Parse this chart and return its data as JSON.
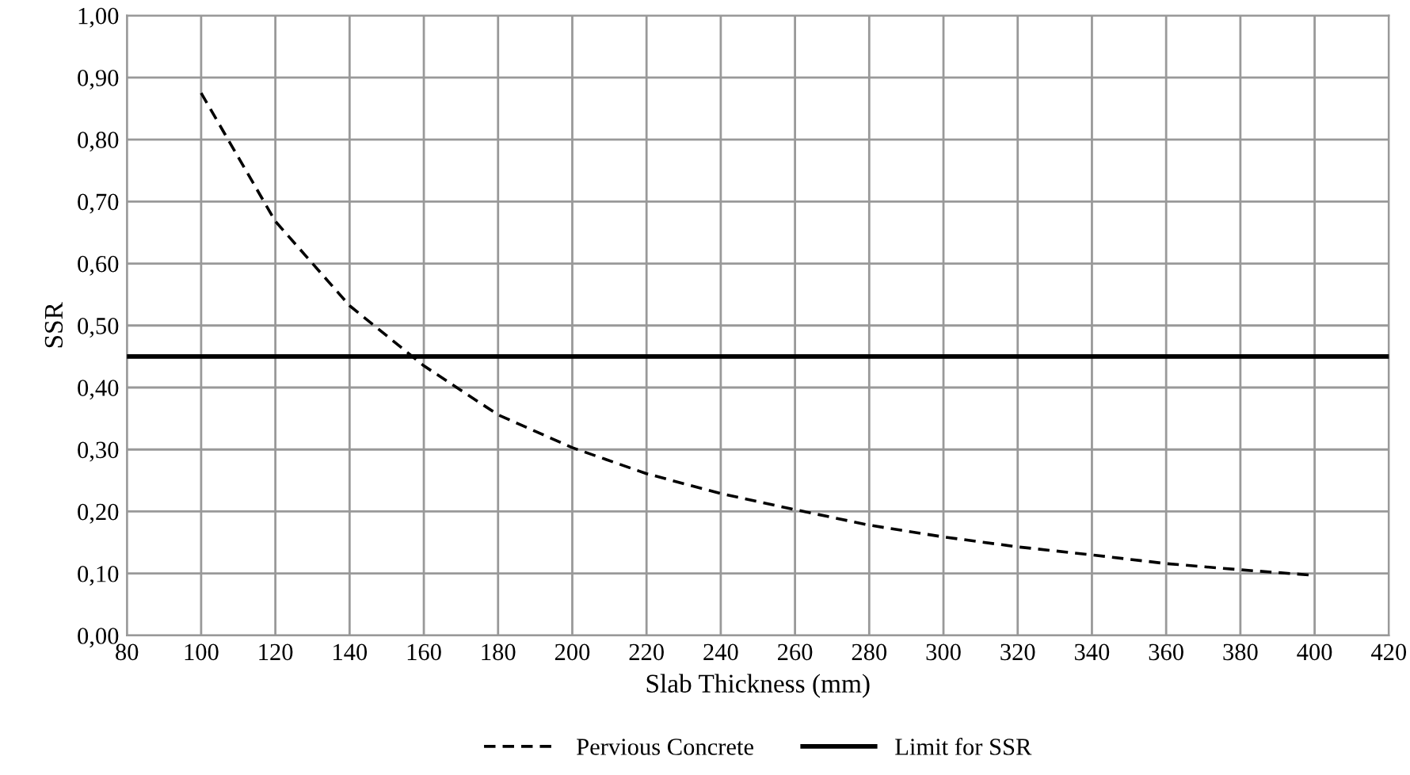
{
  "chart_data": {
    "type": "line",
    "xlabel": "Slab Thickness (mm)",
    "ylabel": "SSR",
    "xlim": [
      80,
      420
    ],
    "xticks": [
      80,
      100,
      120,
      140,
      160,
      180,
      200,
      220,
      240,
      260,
      280,
      300,
      320,
      340,
      360,
      380,
      400,
      420
    ],
    "ylim": [
      0,
      1
    ],
    "yticks": [
      {
        "value": 0,
        "label": "0,00"
      },
      {
        "value": 0.1,
        "label": "0,10"
      },
      {
        "value": 0.2,
        "label": "0,20"
      },
      {
        "value": 0.3,
        "label": "0,30"
      },
      {
        "value": 0.4,
        "label": "0,40"
      },
      {
        "value": 0.5,
        "label": "0,50"
      },
      {
        "value": 0.6,
        "label": "0,60"
      },
      {
        "value": 0.7,
        "label": "0,70"
      },
      {
        "value": 0.8,
        "label": "0,80"
      },
      {
        "value": 0.9,
        "label": "0,90"
      },
      {
        "value": 1.0,
        "label": "1,00"
      }
    ],
    "grid": true,
    "legend": "bottom",
    "marker": "none",
    "series": [
      {
        "name": "Pervious Concrete",
        "color": "#000000",
        "line_style": "dashed",
        "x": [
          100,
          120,
          140,
          160,
          180,
          200,
          220,
          240,
          260,
          280,
          300,
          320,
          340,
          360,
          380,
          400
        ],
        "values": [
          0.875,
          0.668,
          0.532,
          0.435,
          0.356,
          0.303,
          0.261,
          0.229,
          0.203,
          0.178,
          0.159,
          0.143,
          0.13,
          0.116,
          0.106,
          0.097
        ]
      },
      {
        "name": "Limit for SSR",
        "color": "#000000",
        "line_style": "solid",
        "x": [
          80,
          420
        ],
        "values": [
          0.45,
          0.45
        ]
      }
    ]
  }
}
